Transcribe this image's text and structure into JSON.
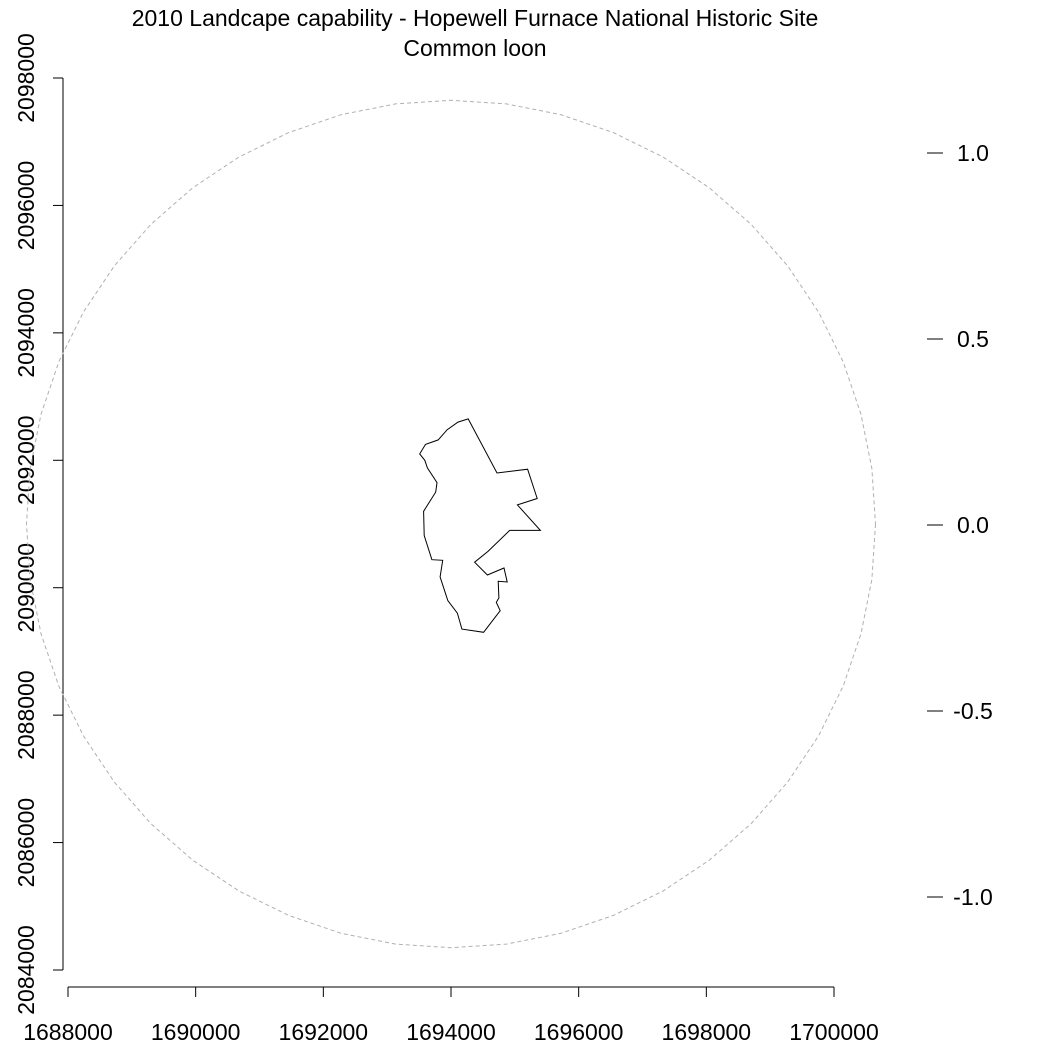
{
  "chart_data": {
    "type": "map",
    "title": "2010 Landcape capability - Hopewell Furnace National Historic Site",
    "subtitle": "Common loon",
    "x_axis": {
      "ticks": [
        1688000,
        1690000,
        1692000,
        1694000,
        1696000,
        1698000,
        1700000
      ],
      "range": [
        1688000,
        1700000
      ]
    },
    "y_axis": {
      "ticks": [
        2084000,
        2086000,
        2088000,
        2090000,
        2092000,
        2094000,
        2096000,
        2098000
      ],
      "range": [
        2084000,
        2098000
      ]
    },
    "legend_scale": {
      "ticks": [
        "1.0",
        "0.5",
        "0.0",
        "-0.5",
        "-1.0"
      ],
      "values": [
        1.0,
        0.5,
        0.0,
        -0.5,
        -1.0
      ]
    },
    "buffer_circle": {
      "center": [
        1694000,
        2091000
      ],
      "radius": 6650,
      "style": "dashed",
      "color": "#b0b0b0"
    },
    "park_boundary": {
      "color": "#000000",
      "points": [
        [
          1694270,
          2092650
        ],
        [
          1694720,
          2091800
        ],
        [
          1695200,
          2091860
        ],
        [
          1695350,
          2091400
        ],
        [
          1695040,
          2091300
        ],
        [
          1695400,
          2090900
        ],
        [
          1694920,
          2090900
        ],
        [
          1694580,
          2090570
        ],
        [
          1694370,
          2090400
        ],
        [
          1694570,
          2090200
        ],
        [
          1694830,
          2090310
        ],
        [
          1694880,
          2090090
        ],
        [
          1694740,
          2090100
        ],
        [
          1694750,
          2089840
        ],
        [
          1694710,
          2089770
        ],
        [
          1694770,
          2089640
        ],
        [
          1694510,
          2089300
        ],
        [
          1694170,
          2089350
        ],
        [
          1694100,
          2089600
        ],
        [
          1693950,
          2089800
        ],
        [
          1693830,
          2090170
        ],
        [
          1693870,
          2090430
        ],
        [
          1693700,
          2090440
        ],
        [
          1693580,
          2090820
        ],
        [
          1693570,
          2091200
        ],
        [
          1693760,
          2091500
        ],
        [
          1693780,
          2091650
        ],
        [
          1693630,
          2091880
        ],
        [
          1693590,
          2092000
        ],
        [
          1693510,
          2092100
        ],
        [
          1693600,
          2092250
        ],
        [
          1693800,
          2092320
        ],
        [
          1693940,
          2092480
        ],
        [
          1694110,
          2092600
        ]
      ]
    }
  }
}
